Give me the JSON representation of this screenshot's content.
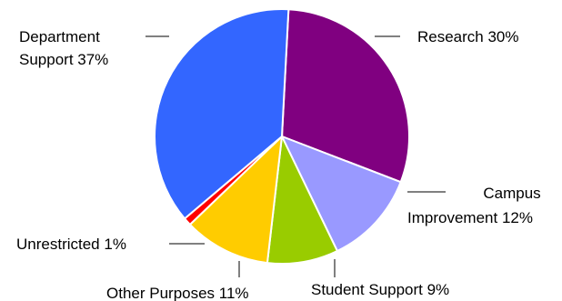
{
  "chart_data": {
    "type": "pie",
    "unit": "%",
    "slices": [
      {
        "label": "Research",
        "value": 30,
        "color": "#800080"
      },
      {
        "label": "Campus Improvement",
        "value": 12,
        "color": "#9999FF"
      },
      {
        "label": "Student Support",
        "value": 9,
        "color": "#99CC00"
      },
      {
        "label": "Other Purposes",
        "value": 11,
        "color": "#FFCC00"
      },
      {
        "label": "Unrestricted",
        "value": 1,
        "color": "#FF0000"
      },
      {
        "label": "Department Support",
        "value": 37,
        "color": "#3366FF"
      }
    ],
    "label_text": {
      "research": "Research 30%",
      "campus_line1": "Campus",
      "campus_line2": "Improvement 12%",
      "student": "Student Support 9%",
      "other": "Other Purposes 11%",
      "unrestricted": "Unrestricted 1%",
      "department_line1": "Department",
      "department_line2": "Support 37%"
    }
  }
}
